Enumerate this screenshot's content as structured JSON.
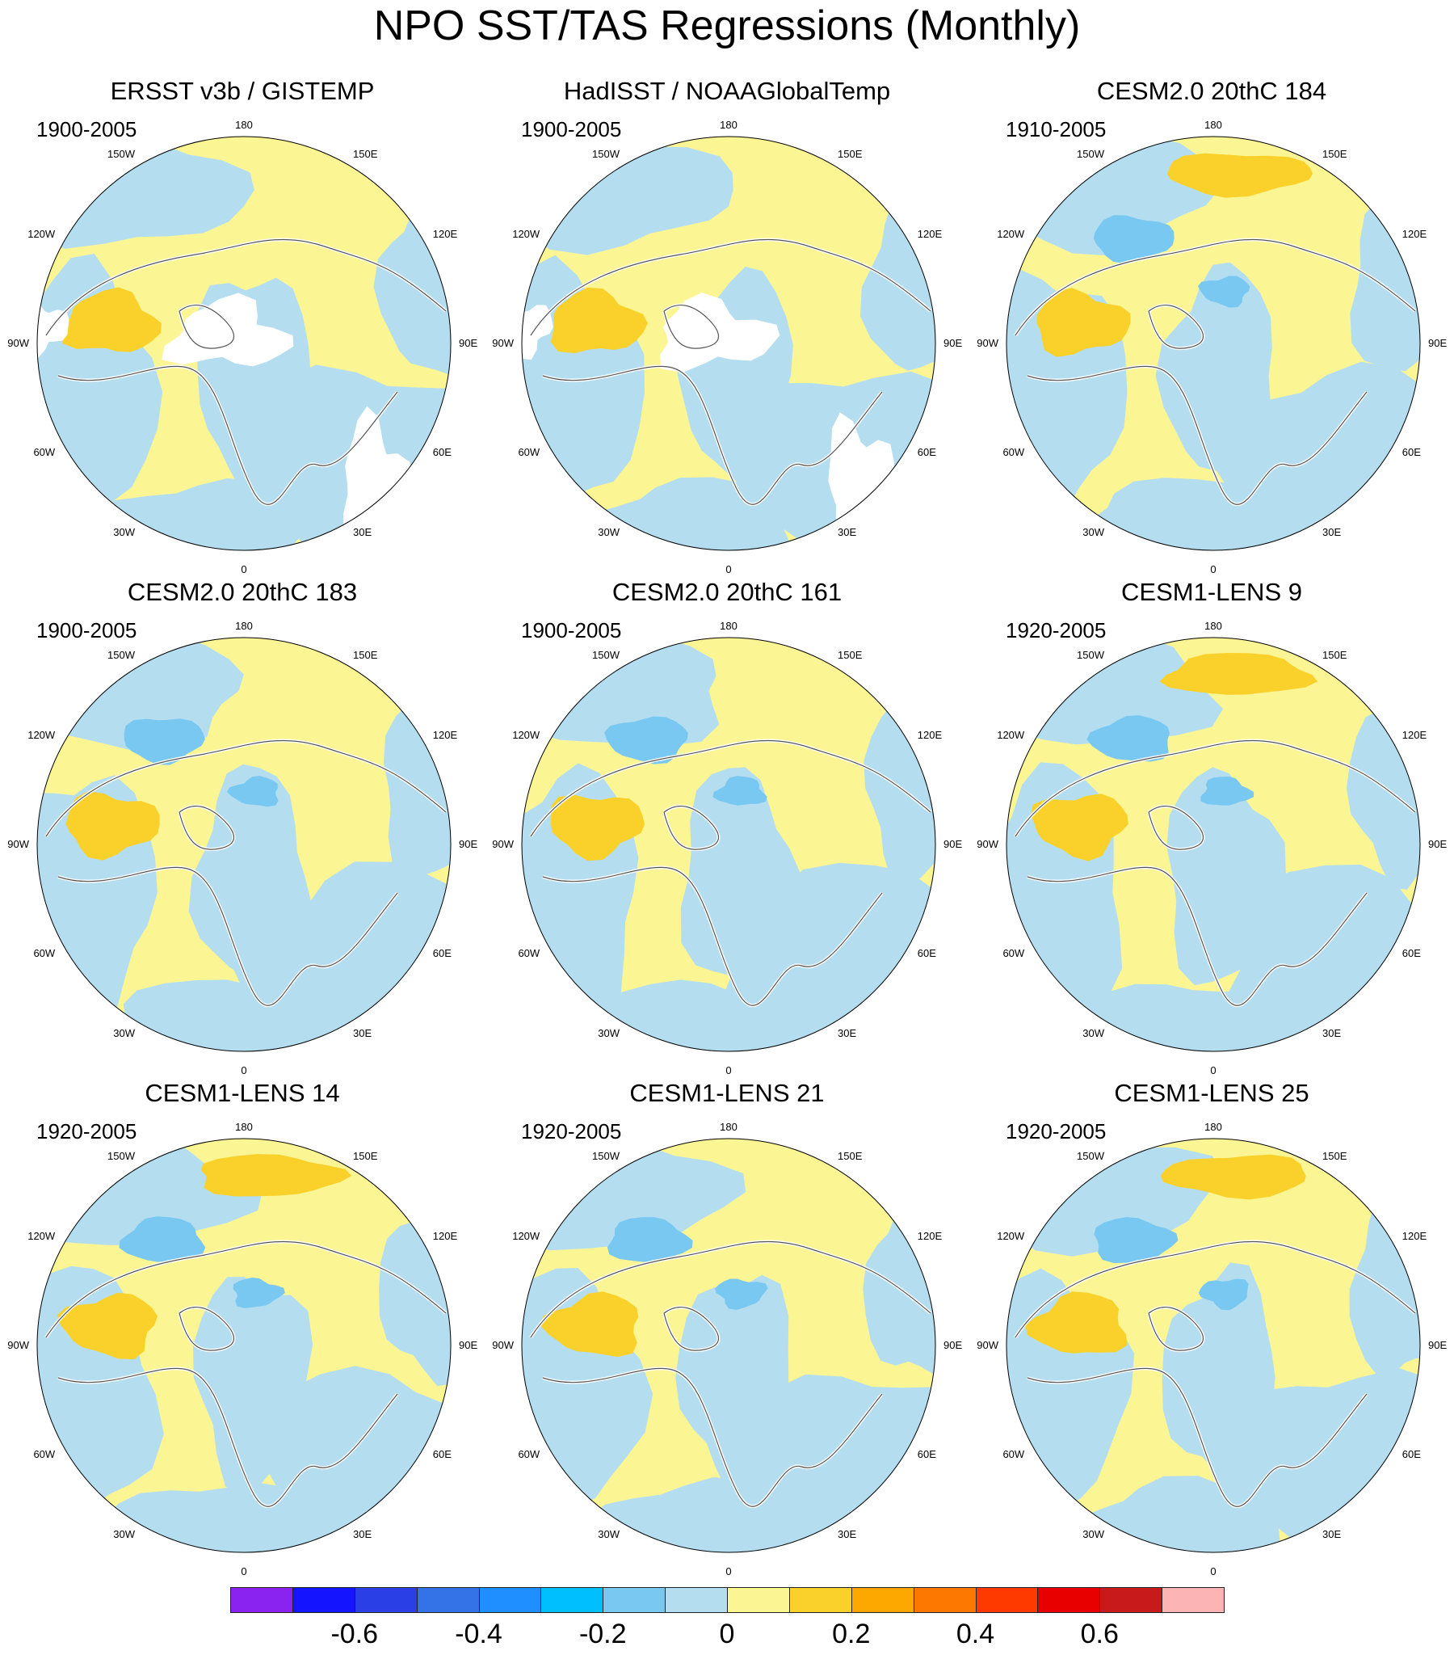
{
  "title": "NPO SST/TAS Regressions (Monthly)",
  "longitude_labels": [
    "180",
    "150E",
    "120E",
    "90E",
    "60E",
    "30E",
    "0",
    "30W",
    "60W",
    "90W",
    "120W",
    "150W"
  ],
  "panels": [
    {
      "title": "ERSST v3b / GISTEMP",
      "period": "1900-2005",
      "strong_pacific_pos": false,
      "pacific_neg": false,
      "missing_data": true
    },
    {
      "title": "HadISST / NOAAGlobalTemp",
      "period": "1900-2005",
      "strong_pacific_pos": false,
      "pacific_neg": false,
      "missing_data": true
    },
    {
      "title": "CESM2.0 20thC 184",
      "period": "1910-2005",
      "strong_pacific_pos": true,
      "pacific_neg": true,
      "missing_data": false
    },
    {
      "title": "CESM2.0 20thC 183",
      "period": "1900-2005",
      "strong_pacific_pos": false,
      "pacific_neg": true,
      "missing_data": false
    },
    {
      "title": "CESM2.0 20thC 161",
      "period": "1900-2005",
      "strong_pacific_pos": false,
      "pacific_neg": true,
      "missing_data": false
    },
    {
      "title": "CESM1-LENS 9",
      "period": "1920-2005",
      "strong_pacific_pos": true,
      "pacific_neg": true,
      "missing_data": false
    },
    {
      "title": "CESM1-LENS 14",
      "period": "1920-2005",
      "strong_pacific_pos": true,
      "pacific_neg": true,
      "missing_data": false
    },
    {
      "title": "CESM1-LENS 21",
      "period": "1920-2005",
      "strong_pacific_pos": false,
      "pacific_neg": true,
      "missing_data": false
    },
    {
      "title": "CESM1-LENS 25",
      "period": "1920-2005",
      "strong_pacific_pos": true,
      "pacific_neg": true,
      "missing_data": false
    }
  ],
  "colorbar": {
    "colors": [
      "#8a22f0",
      "#1414ff",
      "#2a40e6",
      "#3472e8",
      "#1f8fff",
      "#00bfff",
      "#79c8f2",
      "#b4def0",
      "#fcf593",
      "#fad12a",
      "#fca800",
      "#fc7800",
      "#ff3a00",
      "#e80000",
      "#c81a1a",
      "#fcb4b4"
    ],
    "boundaries": [
      -0.7,
      -0.6,
      -0.5,
      -0.4,
      -0.3,
      -0.2,
      -0.1,
      0,
      0.1,
      0.2,
      0.3,
      0.4,
      0.5,
      0.6,
      0.7
    ],
    "tick_labels": [
      "-0.6",
      "-0.4",
      "-0.2",
      "0",
      "0.2",
      "0.4",
      "0.6"
    ],
    "tick_values": [
      -0.6,
      -0.4,
      -0.2,
      0,
      0.2,
      0.4,
      0.6
    ]
  }
}
